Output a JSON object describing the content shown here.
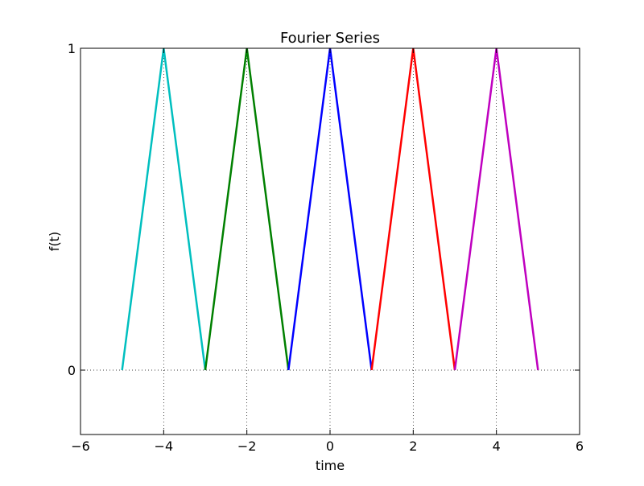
{
  "chart_data": {
    "type": "line",
    "title": "Fourier Series",
    "xlabel": "time",
    "ylabel": "f(t)",
    "xlim": [
      -6,
      6
    ],
    "ylim": [
      -0.2,
      1
    ],
    "x_ticks": [
      -6,
      -4,
      -2,
      0,
      2,
      4,
      6
    ],
    "x_tick_labels": [
      "−6",
      "−4",
      "−2",
      "0",
      "2",
      "4",
      "6"
    ],
    "y_ticks": [
      0,
      1
    ],
    "y_tick_labels": [
      "0",
      "1"
    ],
    "grid": true,
    "grid_style": "dotted",
    "legend": "none",
    "series": [
      {
        "color": "#00bfbf",
        "x": [
          -5,
          -4,
          -3
        ],
        "y": [
          0,
          1,
          0
        ]
      },
      {
        "color": "#008000",
        "x": [
          -3,
          -2,
          -1
        ],
        "y": [
          0,
          1,
          0
        ]
      },
      {
        "color": "#0000ff",
        "x": [
          -1,
          0,
          1
        ],
        "y": [
          0,
          1,
          0
        ]
      },
      {
        "color": "#ff0000",
        "x": [
          1,
          2,
          3
        ],
        "y": [
          0,
          1,
          0
        ]
      },
      {
        "color": "#bf00bf",
        "x": [
          3,
          4,
          5
        ],
        "y": [
          0,
          1,
          0
        ]
      }
    ]
  }
}
